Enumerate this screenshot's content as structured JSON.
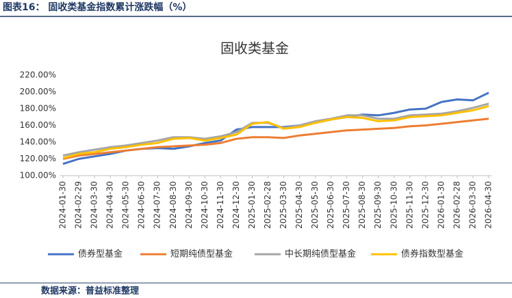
{
  "header": {
    "title": "图表16：  固收类基金指数累计涨跌幅（%）"
  },
  "footer": {
    "source": "数据来源：普益标准整理"
  },
  "chart_data": {
    "type": "line",
    "title": "固收类基金",
    "categories": [
      "2024-01-30",
      "2024-02-29",
      "2024-03-30",
      "2024-04-30",
      "2024-05-30",
      "2024-06-30",
      "2024-07-30",
      "2024-08-30",
      "2024-09-30",
      "2024-10-30",
      "2024-11-30",
      "2024-12-30",
      "2025-01-30",
      "2025-02-28",
      "2025-03-30",
      "2025-04-30",
      "2025-05-30",
      "2025-06-30",
      "2025-07-30",
      "2025-08-30",
      "2025-09-30",
      "2025-10-30",
      "2025-11-30",
      "2025-12-30",
      "2026-01-30",
      "2026-02-28",
      "2026-03-30",
      "2026-04-30"
    ],
    "series": [
      {
        "name": "债券型基金",
        "color": "#4472c4",
        "values": [
          114,
          120,
          123,
          126,
          130,
          132,
          133,
          132,
          135,
          139,
          142,
          155,
          158,
          158,
          158,
          160,
          163,
          167,
          170,
          173,
          172,
          175,
          179,
          180,
          188,
          191,
          190,
          199
        ]
      },
      {
        "name": "短期纯债型基金",
        "color": "#ed7d31",
        "values": [
          120,
          124,
          126,
          128,
          130,
          132,
          134,
          135,
          136,
          137,
          139,
          144,
          146,
          146,
          145,
          148,
          150,
          152,
          154,
          155,
          156,
          157,
          159,
          160,
          162,
          164,
          166,
          168
        ]
      },
      {
        "name": "中长期纯债型基金",
        "color": "#a5a5a5",
        "values": [
          124,
          128,
          131,
          134,
          136,
          139,
          142,
          146,
          146,
          144,
          147,
          152,
          163,
          163,
          157,
          160,
          165,
          168,
          172,
          172,
          168,
          168,
          172,
          173,
          174,
          177,
          181,
          186
        ]
      },
      {
        "name": "债券指数型基金",
        "color": "#ffc000",
        "values": [
          121,
          126,
          128,
          132,
          134,
          137,
          139,
          144,
          145,
          142,
          145,
          149,
          162,
          164,
          156,
          158,
          163,
          167,
          170,
          169,
          165,
          166,
          170,
          171,
          172,
          175,
          178,
          183
        ]
      }
    ],
    "ylim": [
      100,
      220
    ],
    "yticks": [
      {
        "value": 100,
        "label": "100.00%"
      },
      {
        "value": 120,
        "label": "120.00%"
      },
      {
        "value": 140,
        "label": "140.00%"
      },
      {
        "value": 160,
        "label": "160.00%"
      },
      {
        "value": 180,
        "label": "180.00%"
      },
      {
        "value": 200,
        "label": "200.00%"
      },
      {
        "value": 220,
        "label": "220.00%"
      }
    ],
    "grid": false,
    "legend": "bottom"
  }
}
